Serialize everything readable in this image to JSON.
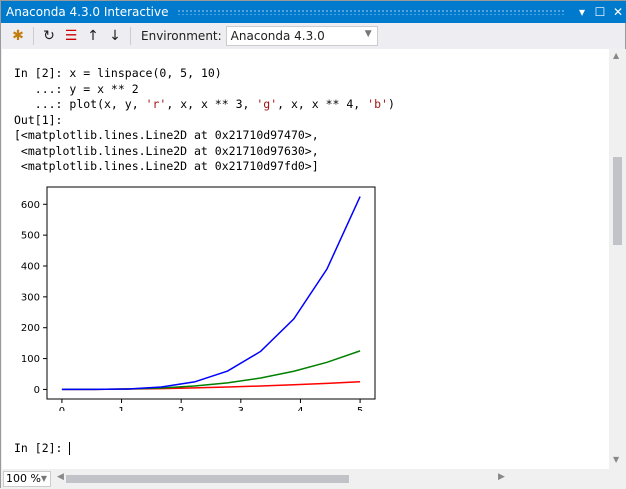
{
  "window": {
    "title": "Anaconda 4.3.0 Interactive"
  },
  "toolbar": {
    "environment_label": "Environment:",
    "environment_value": "Anaconda 4.3.0",
    "icons": [
      "new-window-icon",
      "reset-icon",
      "clear-icon",
      "history-up-icon",
      "history-down-icon"
    ]
  },
  "editor": {
    "lines": [
      {
        "prompt": "In [2]: ",
        "code": "x = linspace(0, 5, 10)"
      },
      {
        "prompt": "   ...: ",
        "code": "y = x ** 2"
      },
      {
        "prompt": "   ...: ",
        "code_parts": [
          "plot(x, y, ",
          "'r'",
          ", x, x ** 3, ",
          "'g'",
          ", x, x ** 4, ",
          "'b'",
          ")"
        ]
      },
      {
        "prompt": "Out[1]:",
        "code": ""
      }
    ],
    "output": [
      "[<matplotlib.lines.Line2D at 0x21710d97470>,",
      " <matplotlib.lines.Line2D at 0x21710d97630>,",
      " <matplotlib.lines.Line2D at 0x21710d97fd0>]"
    ],
    "next_prompt": "In [2]: "
  },
  "statusbar": {
    "zoom": "100 %"
  },
  "chart_data": {
    "type": "line",
    "x": [
      0,
      0.5556,
      1.1111,
      1.6667,
      2.2222,
      2.7778,
      3.3333,
      3.8889,
      4.4444,
      5
    ],
    "series": [
      {
        "color": "#ff0000",
        "values": [
          0,
          0.309,
          1.235,
          2.778,
          4.938,
          7.716,
          11.111,
          15.123,
          19.753,
          25
        ]
      },
      {
        "color": "#008000",
        "values": [
          0,
          0.171,
          1.372,
          4.63,
          10.974,
          21.433,
          37.037,
          58.813,
          87.791,
          125
        ]
      },
      {
        "color": "#0000ff",
        "values": [
          0,
          0.095,
          1.524,
          7.716,
          24.387,
          59.537,
          123.457,
          228.718,
          390.184,
          625
        ]
      }
    ],
    "xticks": [
      "0",
      "1",
      "2",
      "3",
      "4",
      "5"
    ],
    "yticks": [
      "0",
      "100",
      "200",
      "300",
      "400",
      "500",
      "600"
    ],
    "xlim": [
      -0.25,
      5.25
    ],
    "ylim": [
      -31,
      656
    ],
    "grid": false
  }
}
